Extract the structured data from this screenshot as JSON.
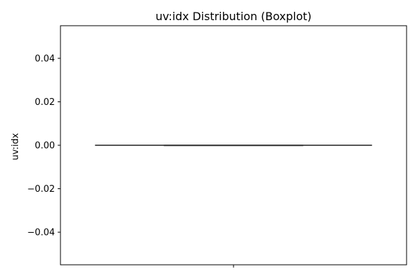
{
  "chart_data": {
    "type": "boxplot",
    "title": "uv:idx Distribution (Boxplot)",
    "xlabel": "",
    "ylabel": "uv:idx",
    "ylim": [
      -0.055,
      0.055
    ],
    "yticks": [
      -0.04,
      -0.02,
      0.0,
      0.02,
      0.04
    ],
    "ytick_labels": [
      "−0.04",
      "−0.02",
      "0.00",
      "0.02",
      "0.04"
    ],
    "xticks": [
      ""
    ],
    "grid": false,
    "box": {
      "min": 0,
      "q1": 0,
      "median": 0,
      "q3": 0,
      "max": 0
    },
    "colors": {
      "box_line": "#3f3f3f",
      "axis": "#000000"
    }
  }
}
